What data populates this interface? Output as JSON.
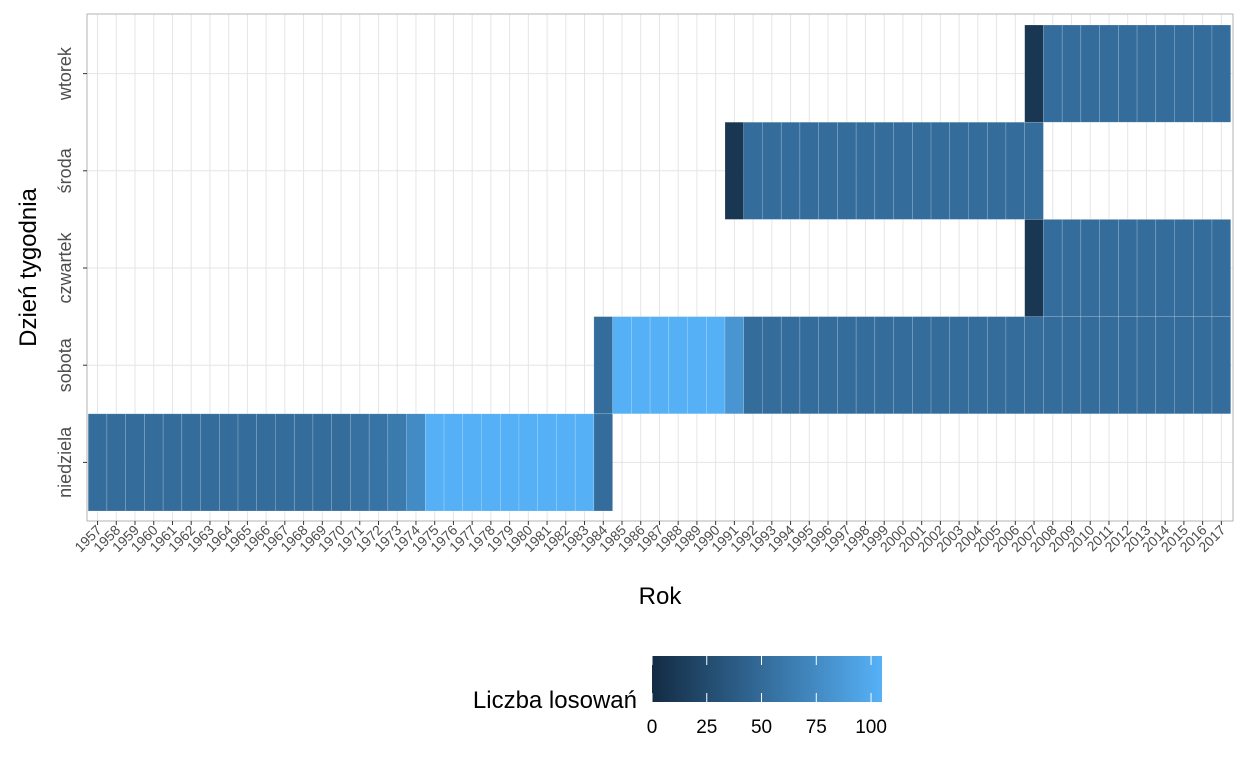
{
  "chart_data": {
    "type": "heatmap",
    "xlabel": "Rok",
    "ylabel": "Dzień tygodnia",
    "x_categories": [
      1957,
      1958,
      1959,
      1960,
      1961,
      1962,
      1963,
      1964,
      1965,
      1966,
      1967,
      1968,
      1969,
      1970,
      1971,
      1972,
      1973,
      1974,
      1975,
      1976,
      1977,
      1978,
      1979,
      1980,
      1981,
      1982,
      1983,
      1984,
      1985,
      1986,
      1987,
      1988,
      1989,
      1990,
      1991,
      1992,
      1993,
      1994,
      1995,
      1996,
      1997,
      1998,
      1999,
      2000,
      2001,
      2002,
      2003,
      2004,
      2005,
      2006,
      2007,
      2008,
      2009,
      2010,
      2011,
      2012,
      2013,
      2014,
      2015,
      2016,
      2017
    ],
    "y_categories": [
      "niedziela",
      "sobota",
      "czwartek",
      "środa",
      "wtorek"
    ],
    "series": [
      {
        "day": "niedziela",
        "values": [
          52,
          52,
          52,
          52,
          52,
          52,
          52,
          52,
          52,
          52,
          52,
          52,
          52,
          52,
          55,
          57,
          62,
          75,
          104,
          104,
          104,
          104,
          104,
          104,
          104,
          104,
          104,
          52,
          null,
          null,
          null,
          null,
          null,
          null,
          null,
          null,
          null,
          null,
          null,
          null,
          null,
          null,
          null,
          null,
          null,
          null,
          null,
          null,
          null,
          null,
          null,
          null,
          null,
          null,
          null,
          null,
          null,
          null,
          null,
          null,
          null
        ]
      },
      {
        "day": "sobota",
        "values": [
          null,
          null,
          null,
          null,
          null,
          null,
          null,
          null,
          null,
          null,
          null,
          null,
          null,
          null,
          null,
          null,
          null,
          null,
          null,
          null,
          null,
          null,
          null,
          null,
          null,
          null,
          null,
          52,
          104,
          104,
          104,
          104,
          104,
          104,
          83,
          52,
          52,
          52,
          52,
          52,
          52,
          52,
          52,
          52,
          52,
          52,
          52,
          52,
          52,
          52,
          52,
          52,
          52,
          52,
          52,
          52,
          52,
          52,
          52,
          52,
          52
        ]
      },
      {
        "day": "czwartek",
        "values": [
          null,
          null,
          null,
          null,
          null,
          null,
          null,
          null,
          null,
          null,
          null,
          null,
          null,
          null,
          null,
          null,
          null,
          null,
          null,
          null,
          null,
          null,
          null,
          null,
          null,
          null,
          null,
          null,
          null,
          null,
          null,
          null,
          null,
          null,
          null,
          null,
          null,
          null,
          null,
          null,
          null,
          null,
          null,
          null,
          null,
          null,
          null,
          null,
          null,
          null,
          9,
          52,
          52,
          52,
          52,
          52,
          52,
          52,
          52,
          52,
          52
        ]
      },
      {
        "day": "środa",
        "values": [
          null,
          null,
          null,
          null,
          null,
          null,
          null,
          null,
          null,
          null,
          null,
          null,
          null,
          null,
          null,
          null,
          null,
          null,
          null,
          null,
          null,
          null,
          null,
          null,
          null,
          null,
          null,
          null,
          null,
          null,
          null,
          null,
          null,
          null,
          9,
          52,
          52,
          52,
          52,
          52,
          52,
          52,
          52,
          52,
          52,
          52,
          52,
          52,
          52,
          52,
          52,
          null,
          null,
          null,
          null,
          null,
          null,
          null,
          null,
          null,
          null
        ]
      },
      {
        "day": "wtorek",
        "values": [
          null,
          null,
          null,
          null,
          null,
          null,
          null,
          null,
          null,
          null,
          null,
          null,
          null,
          null,
          null,
          null,
          null,
          null,
          null,
          null,
          null,
          null,
          null,
          null,
          null,
          null,
          null,
          null,
          null,
          null,
          null,
          null,
          null,
          null,
          null,
          null,
          null,
          null,
          null,
          null,
          null,
          null,
          null,
          null,
          null,
          null,
          null,
          null,
          null,
          null,
          9,
          52,
          52,
          52,
          52,
          52,
          52,
          52,
          52,
          52,
          52
        ]
      }
    ],
    "legend": {
      "title": "Liczba losowań",
      "placement": "bottom",
      "range": [
        0,
        105
      ],
      "ticks": [
        0,
        25,
        50,
        75,
        100
      ],
      "color_low": "#132B43",
      "color_high": "#56B1F7"
    },
    "grid": true,
    "panel_border": "#b3b3b3",
    "grid_color": "#e5e5e5"
  }
}
